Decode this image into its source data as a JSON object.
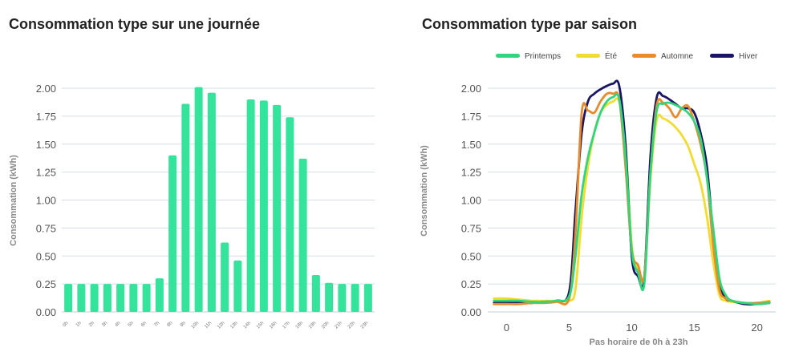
{
  "chart_data": [
    {
      "type": "bar",
      "title": "Consommation type sur une journée",
      "ylabel": "Consommation (kWh)",
      "xlabel": "",
      "categories": [
        "0h",
        "1h",
        "2h",
        "3h",
        "4h",
        "5h",
        "6h",
        "7h",
        "8h",
        "9h",
        "10h",
        "11h",
        "12h",
        "13h",
        "14h",
        "15h",
        "16h",
        "17h",
        "18h",
        "19h",
        "20h",
        "21h",
        "22h",
        "23h"
      ],
      "values": [
        0.25,
        0.25,
        0.25,
        0.25,
        0.25,
        0.25,
        0.25,
        0.3,
        1.4,
        1.86,
        2.01,
        1.96,
        0.62,
        0.46,
        1.9,
        1.89,
        1.85,
        1.74,
        1.37,
        0.33,
        0.26,
        0.25,
        0.25,
        0.25
      ],
      "ylim": [
        0,
        2.0
      ],
      "yticks": [
        "0.00",
        "0.25",
        "0.50",
        "0.75",
        "1.00",
        "1.25",
        "1.50",
        "1.75",
        "2.00"
      ],
      "grid": true,
      "bar_color": "#34e39c"
    },
    {
      "type": "line",
      "title": "Consommation type par saison",
      "ylabel": "Consommation (kWh)",
      "xlabel": "Pas horaire de 0h à 23h",
      "xlim": [
        -1.5,
        21.5
      ],
      "ylim": [
        0,
        2.0
      ],
      "xticks": [
        0,
        5,
        10,
        15,
        20
      ],
      "yticks": [
        "0.00",
        "0.25",
        "0.50",
        "0.75",
        "1.00",
        "1.25",
        "1.50",
        "1.75",
        "2.00"
      ],
      "grid": true,
      "legend": "top",
      "x": [
        -1,
        0,
        1,
        2,
        3,
        4,
        5,
        5.5,
        6,
        6.5,
        7,
        7.5,
        8,
        8.5,
        9,
        9.5,
        10,
        10.5,
        11,
        11.5,
        12,
        12.5,
        13,
        13.5,
        14,
        14.5,
        15,
        15.5,
        16,
        16.5,
        17,
        17.5,
        18,
        19,
        20,
        21
      ],
      "series": [
        {
          "name": "Printemps",
          "color": "#2fd67b",
          "values": [
            0.1,
            0.1,
            0.1,
            0.09,
            0.09,
            0.1,
            0.14,
            0.5,
            1.05,
            1.38,
            1.6,
            1.78,
            1.88,
            1.92,
            1.9,
            1.4,
            0.55,
            0.35,
            0.25,
            1.25,
            1.8,
            1.86,
            1.87,
            1.85,
            1.82,
            1.78,
            1.7,
            1.55,
            1.2,
            0.75,
            0.3,
            0.15,
            0.1,
            0.08,
            0.07,
            0.08
          ]
        },
        {
          "name": "Été",
          "color": "#f2dc2d",
          "values": [
            0.12,
            0.12,
            0.11,
            0.1,
            0.1,
            0.1,
            0.1,
            0.2,
            0.85,
            1.3,
            1.6,
            1.78,
            1.85,
            1.88,
            1.88,
            1.5,
            0.6,
            0.38,
            0.32,
            1.2,
            1.72,
            1.73,
            1.7,
            1.65,
            1.58,
            1.48,
            1.32,
            1.15,
            0.85,
            0.45,
            0.15,
            0.1,
            0.09,
            0.08,
            0.08,
            0.1
          ]
        },
        {
          "name": "Automne",
          "color": "#ea8a2a",
          "values": [
            0.07,
            0.07,
            0.07,
            0.08,
            0.08,
            0.09,
            0.12,
            0.7,
            1.78,
            1.8,
            1.78,
            1.88,
            1.95,
            1.95,
            1.9,
            1.3,
            0.55,
            0.42,
            0.32,
            1.25,
            1.85,
            1.87,
            1.82,
            1.74,
            1.82,
            1.84,
            1.7,
            1.5,
            1.2,
            0.6,
            0.2,
            0.12,
            0.1,
            0.08,
            0.08,
            0.09
          ]
        },
        {
          "name": "Hiver",
          "color": "#1a1565",
          "values": [
            0.08,
            0.08,
            0.08,
            0.08,
            0.09,
            0.1,
            0.18,
            0.9,
            1.6,
            1.88,
            1.95,
            1.99,
            2.02,
            2.04,
            2.02,
            1.5,
            0.5,
            0.32,
            0.3,
            1.4,
            1.92,
            1.93,
            1.9,
            1.86,
            1.82,
            1.82,
            1.78,
            1.6,
            1.3,
            0.7,
            0.25,
            0.12,
            0.1,
            0.07,
            0.07,
            0.08
          ]
        }
      ]
    }
  ]
}
